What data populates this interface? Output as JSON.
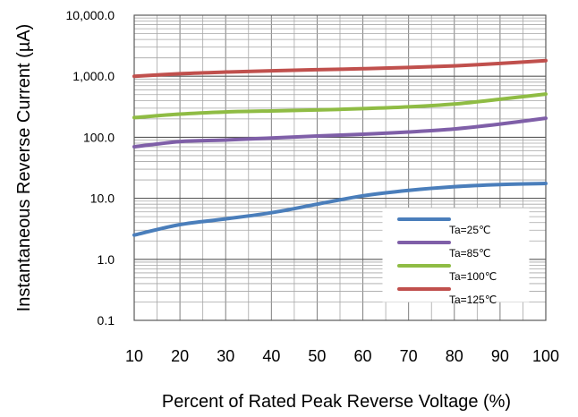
{
  "chart_data": {
    "type": "line",
    "title": "",
    "xlabel": "Percent of Rated Peak Reverse Voltage (%)",
    "ylabel": "Instantaneous Reverse Current (µA)",
    "xlim": [
      10,
      100
    ],
    "ylim": [
      0.1,
      10000
    ],
    "y_scale": "log",
    "grid": true,
    "legend_position": "lower-right",
    "x_ticks": [
      "10",
      "20",
      "30",
      "40",
      "50",
      "60",
      "70",
      "80",
      "90",
      "100"
    ],
    "y_ticks": [
      "0.1",
      "1.0",
      "10.0",
      "100.0",
      "1,000.0",
      "10,000.0"
    ],
    "x": [
      10,
      20,
      30,
      40,
      50,
      60,
      70,
      80,
      90,
      100
    ],
    "series": [
      {
        "name": "Ta=25℃",
        "color": "#4a7ebb",
        "values": [
          2.5,
          3.7,
          4.6,
          5.8,
          8.0,
          11.0,
          13.5,
          15.5,
          16.8,
          17.5
        ]
      },
      {
        "name": "Ta=85℃",
        "color": "#7f5fa8",
        "values": [
          70,
          85,
          90,
          97,
          105,
          112,
          122,
          137,
          165,
          205
        ]
      },
      {
        "name": "Ta=100℃",
        "color": "#8fbc44",
        "values": [
          210,
          240,
          260,
          270,
          280,
          295,
          315,
          350,
          420,
          510
        ]
      },
      {
        "name": "Ta=125℃",
        "color": "#c0504d",
        "values": [
          1000,
          1100,
          1170,
          1230,
          1280,
          1330,
          1390,
          1480,
          1620,
          1800
        ]
      }
    ]
  }
}
